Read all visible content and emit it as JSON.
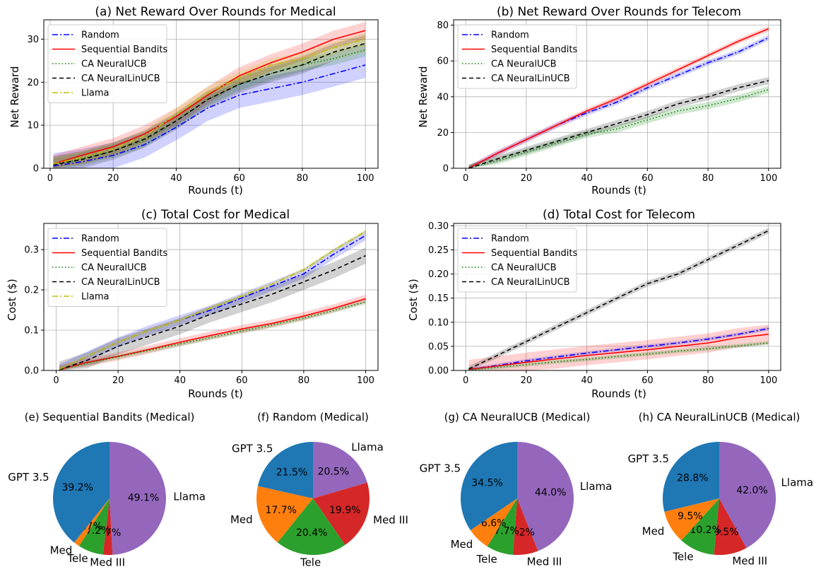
{
  "chart_data": [
    {
      "id": "a",
      "type": "line",
      "title": "(a) Net Reward Over Rounds for Medical",
      "xlabel": "Rounds (t)",
      "ylabel": "Net Reward",
      "xlim": [
        -2,
        104
      ],
      "ylim": [
        0,
        34.5
      ],
      "xticks": [
        0,
        20,
        40,
        60,
        80,
        100
      ],
      "yticks": [
        0,
        10,
        20,
        30
      ],
      "ytick_labels": [
        "0",
        "10",
        "20",
        "30"
      ],
      "grid": true,
      "legend_position": "upper-left",
      "x": [
        1,
        10,
        20,
        30,
        40,
        50,
        60,
        70,
        80,
        90,
        100
      ],
      "series": [
        {
          "name": "Random",
          "color": "#0000ff",
          "dash": "dashdot",
          "values": [
            0.5,
            1.5,
            3.0,
            5.5,
            9.5,
            14.0,
            17.0,
            18.5,
            20.0,
            22.0,
            24.0
          ],
          "band": 3.0
        },
        {
          "name": "Sequential Bandits",
          "color": "#ff0000",
          "dash": "solid",
          "values": [
            1.0,
            3.0,
            5.0,
            8.0,
            12.0,
            17.0,
            21.5,
            24.5,
            27.0,
            30.0,
            32.0
          ],
          "band": 2.0
        },
        {
          "name": "CA NeuralUCB",
          "color": "#008000",
          "dash": "dotted",
          "values": [
            0.8,
            2.2,
            4.0,
            6.5,
            11.0,
            16.0,
            19.5,
            22.0,
            24.0,
            25.5,
            27.5
          ],
          "band": 1.5
        },
        {
          "name": "CA NeuralLinUCB",
          "color": "#000000",
          "dash": "dashed",
          "values": [
            0.8,
            2.0,
            4.0,
            6.8,
            11.0,
            16.0,
            19.5,
            22.0,
            24.0,
            27.0,
            29.0
          ],
          "band": 2.0
        },
        {
          "name": "Llama",
          "color": "#bfbf00",
          "dash": "dashdot",
          "values": [
            1.0,
            2.5,
            4.5,
            7.5,
            12.5,
            17.5,
            21.0,
            24.0,
            25.5,
            28.0,
            30.0
          ],
          "band": 1.5
        }
      ]
    },
    {
      "id": "b",
      "type": "line",
      "title": "(b) Net Reward Over Rounds for Telecom",
      "xlabel": "Rounds (t)",
      "ylabel": "Net Reward",
      "xlim": [
        -4,
        104
      ],
      "ylim": [
        0,
        83
      ],
      "xticks": [
        0,
        20,
        40,
        60,
        80,
        100
      ],
      "yticks": [
        0,
        20,
        40,
        60,
        80
      ],
      "ytick_labels": [
        "0",
        "20",
        "40",
        "60",
        "80"
      ],
      "grid": true,
      "legend_position": "upper-left",
      "x": [
        1,
        10,
        20,
        30,
        40,
        50,
        60,
        70,
        80,
        90,
        100
      ],
      "series": [
        {
          "name": "Random",
          "color": "#0000ff",
          "dash": "dashdot",
          "values": [
            0,
            8,
            16,
            24,
            31,
            37,
            45,
            52,
            59,
            65,
            73
          ],
          "band": 1.5
        },
        {
          "name": "Sequential Bandits",
          "color": "#ff0000",
          "dash": "solid",
          "values": [
            0,
            8,
            16,
            24,
            32,
            39,
            47,
            55,
            63,
            71,
            78
          ],
          "band": 1.5
        },
        {
          "name": "CA NeuralUCB",
          "color": "#008000",
          "dash": "dotted",
          "values": [
            0,
            4,
            9,
            14,
            19,
            22,
            27,
            32,
            35,
            39,
            44
          ],
          "band": 2.0
        },
        {
          "name": "CA NeuralLinUCB",
          "color": "#000000",
          "dash": "dashed",
          "values": [
            0,
            5,
            10,
            15,
            20,
            25,
            30,
            36,
            40,
            45,
            49
          ],
          "band": 2.0
        }
      ]
    },
    {
      "id": "c",
      "type": "line",
      "title": "(c) Total Cost for Medical",
      "xlabel": "Rounds (t)",
      "ylabel": "Cost ($)",
      "xlim": [
        -4,
        104
      ],
      "ylim": [
        0,
        0.365
      ],
      "xticks": [
        0,
        20,
        40,
        60,
        80,
        100
      ],
      "yticks": [
        0,
        0.1,
        0.2,
        0.3
      ],
      "ytick_labels": [
        "0.0",
        "0.1",
        "0.2",
        "0.3"
      ],
      "grid": true,
      "legend_position": "upper-left",
      "x": [
        1,
        10,
        20,
        30,
        40,
        50,
        60,
        70,
        80,
        90,
        100
      ],
      "series": [
        {
          "name": "Random",
          "color": "#0000ff",
          "dash": "dashdot",
          "values": [
            0.003,
            0.035,
            0.07,
            0.1,
            0.125,
            0.15,
            0.18,
            0.21,
            0.24,
            0.29,
            0.335
          ],
          "band": 0.012
        },
        {
          "name": "Sequential Bandits",
          "color": "#ff0000",
          "dash": "solid",
          "values": [
            0.002,
            0.02,
            0.035,
            0.052,
            0.07,
            0.087,
            0.103,
            0.117,
            0.135,
            0.155,
            0.178
          ],
          "band": 0.01
        },
        {
          "name": "CA NeuralUCB",
          "color": "#008000",
          "dash": "dotted",
          "values": [
            0.002,
            0.018,
            0.034,
            0.05,
            0.066,
            0.082,
            0.098,
            0.113,
            0.13,
            0.15,
            0.17
          ],
          "band": 0.006
        },
        {
          "name": "CA NeuralLinUCB",
          "color": "#000000",
          "dash": "dashed",
          "values": [
            0.002,
            0.025,
            0.06,
            0.085,
            0.11,
            0.14,
            0.165,
            0.19,
            0.22,
            0.25,
            0.285
          ],
          "band": 0.02
        },
        {
          "name": "Llama",
          "color": "#bfbf00",
          "dash": "dashdot",
          "values": [
            0.003,
            0.035,
            0.07,
            0.1,
            0.125,
            0.155,
            0.185,
            0.215,
            0.25,
            0.3,
            0.345
          ],
          "band": 0.005
        }
      ]
    },
    {
      "id": "d",
      "type": "line",
      "title": "(d) Total Cost for Telecom",
      "xlabel": "Rounds (t)",
      "ylabel": "Cost ($)",
      "xlim": [
        -4,
        104
      ],
      "ylim": [
        0,
        0.305
      ],
      "xticks": [
        0,
        20,
        40,
        60,
        80,
        100
      ],
      "yticks": [
        0,
        0.05,
        0.1,
        0.15,
        0.2,
        0.25,
        0.3
      ],
      "ytick_labels": [
        "0.00",
        "0.05",
        "0.10",
        "0.15",
        "0.20",
        "0.25",
        "0.30"
      ],
      "grid": true,
      "legend_position": "upper-left",
      "x": [
        1,
        10,
        20,
        30,
        40,
        50,
        60,
        70,
        80,
        90,
        100
      ],
      "series": [
        {
          "name": "Random",
          "color": "#0000ff",
          "dash": "dashdot",
          "values": [
            0.002,
            0.01,
            0.02,
            0.028,
            0.036,
            0.043,
            0.05,
            0.057,
            0.065,
            0.075,
            0.087
          ],
          "band": 0.004
        },
        {
          "name": "Sequential Bandits",
          "color": "#ff0000",
          "dash": "solid",
          "values": [
            0.002,
            0.009,
            0.017,
            0.024,
            0.031,
            0.037,
            0.043,
            0.05,
            0.057,
            0.068,
            0.075
          ],
          "band": 0.02
        },
        {
          "name": "CA NeuralUCB",
          "color": "#008000",
          "dash": "dotted",
          "values": [
            0.001,
            0.006,
            0.012,
            0.018,
            0.023,
            0.029,
            0.034,
            0.04,
            0.045,
            0.051,
            0.057
          ],
          "band": 0.004
        },
        {
          "name": "CA NeuralLinUCB",
          "color": "#000000",
          "dash": "dashed",
          "values": [
            0.003,
            0.03,
            0.06,
            0.09,
            0.12,
            0.15,
            0.18,
            0.2,
            0.23,
            0.26,
            0.29
          ],
          "band": 0.006
        }
      ]
    },
    {
      "id": "e",
      "type": "pie",
      "title": "(e) Sequential Bandits (Medical)",
      "labels": [
        "Llama",
        "Med III",
        "Tele",
        "Med",
        "GPT 3.5"
      ],
      "values": [
        49.1,
        2.7,
        7.2,
        1.7,
        39.2
      ],
      "pct_labels": [
        "49.1%",
        "2.7%",
        "7.2%",
        "1.7%",
        "39.2%"
      ],
      "colors": [
        "#9467bd",
        "#d62728",
        "#2ca02c",
        "#ff7f0e",
        "#1f77b4"
      ]
    },
    {
      "id": "f",
      "type": "pie",
      "title": "(f) Random (Medical)",
      "labels": [
        "Llama",
        "Med III",
        "Tele",
        "Med",
        "GPT 3.5"
      ],
      "values": [
        20.5,
        19.9,
        20.4,
        17.7,
        21.5
      ],
      "pct_labels": [
        "20.5%",
        "19.9%",
        "20.4%",
        "17.7%",
        "21.5%"
      ],
      "colors": [
        "#9467bd",
        "#d62728",
        "#2ca02c",
        "#ff7f0e",
        "#1f77b4"
      ]
    },
    {
      "id": "g",
      "type": "pie",
      "title": "(g) CA NeuralUCB (Medical)",
      "labels": [
        "Llama",
        "Med III",
        "Tele",
        "Med",
        "GPT 3.5"
      ],
      "values": [
        44.0,
        7.2,
        7.7,
        6.6,
        34.5
      ],
      "pct_labels": [
        "44.0%",
        "7.2%",
        "7.7%",
        "6.6%",
        "34.5%"
      ],
      "colors": [
        "#9467bd",
        "#d62728",
        "#2ca02c",
        "#ff7f0e",
        "#1f77b4"
      ]
    },
    {
      "id": "h",
      "type": "pie",
      "title": "(h) CA NeuralLinUCB (Medical)",
      "labels": [
        "Llama",
        "Med III",
        "Tele",
        "Med",
        "GPT 3.5"
      ],
      "values": [
        42.0,
        9.5,
        10.2,
        9.5,
        28.8
      ],
      "pct_labels": [
        "42.0%",
        "9.5%",
        "10.2%",
        "9.5%",
        "28.8%"
      ],
      "colors": [
        "#9467bd",
        "#d62728",
        "#2ca02c",
        "#ff7f0e",
        "#1f77b4"
      ]
    }
  ]
}
